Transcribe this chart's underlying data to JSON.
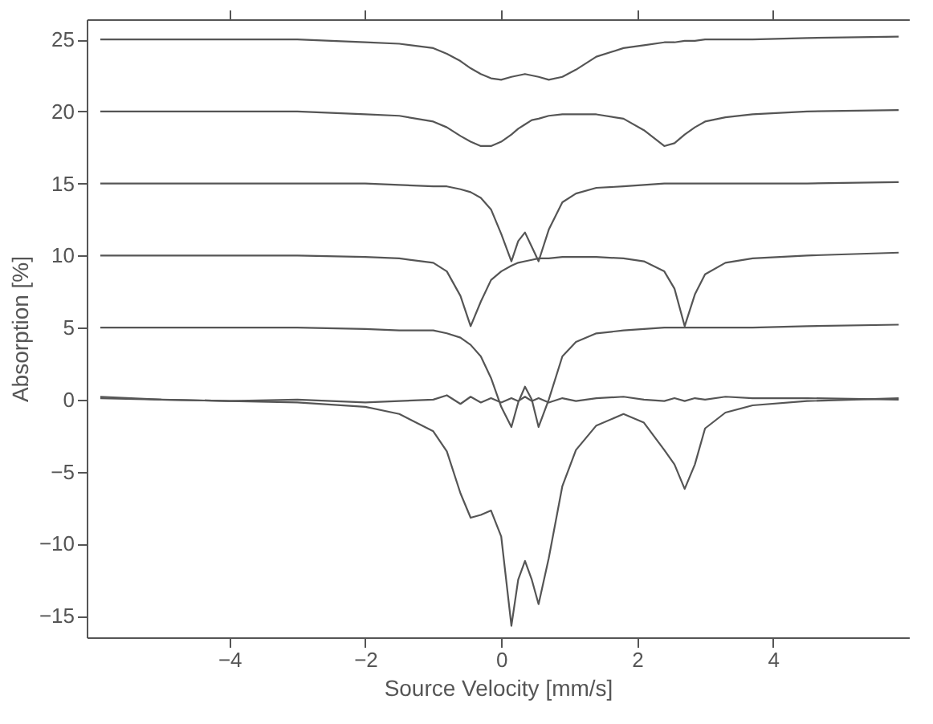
{
  "chart_data": {
    "type": "line",
    "xlabel": "Source Velocity [mm/s]",
    "ylabel": "Absorption [%]",
    "x": [
      -5.9,
      -5,
      -4,
      -3,
      -2,
      -1.5,
      -1,
      -0.8,
      -0.6,
      -0.45,
      -0.3,
      -0.15,
      0,
      0.15,
      0.25,
      0.35,
      0.45,
      0.55,
      0.7,
      0.9,
      1.1,
      1.4,
      1.8,
      2.1,
      2.4,
      2.55,
      2.7,
      2.85,
      3.0,
      3.3,
      3.7,
      4.5,
      5.85
    ],
    "series": [
      {
        "color": "#555555",
        "values": [
          25.0,
          25.0,
          25.0,
          25.0,
          24.8,
          24.7,
          24.4,
          24.0,
          23.5,
          23.0,
          22.6,
          22.3,
          22.2,
          22.4,
          22.5,
          22.6,
          22.5,
          22.4,
          22.2,
          22.4,
          22.9,
          23.8,
          24.4,
          24.6,
          24.8,
          24.8,
          24.9,
          24.9,
          25.0,
          25.0,
          25.0,
          25.1,
          25.2
        ]
      },
      {
        "color": "#555555",
        "values": [
          20.0,
          20.0,
          20.0,
          20.0,
          19.8,
          19.7,
          19.3,
          18.9,
          18.3,
          17.9,
          17.6,
          17.6,
          17.9,
          18.4,
          18.8,
          19.1,
          19.4,
          19.5,
          19.7,
          19.8,
          19.8,
          19.8,
          19.5,
          18.7,
          17.6,
          17.8,
          18.4,
          18.9,
          19.3,
          19.6,
          19.8,
          20.0,
          20.1
        ]
      },
      {
        "color": "#555555",
        "values": [
          15.0,
          15.0,
          15.0,
          15.0,
          15.0,
          14.9,
          14.8,
          14.8,
          14.6,
          14.4,
          14.0,
          13.2,
          11.5,
          9.6,
          11.0,
          11.6,
          10.6,
          9.6,
          11.8,
          13.7,
          14.3,
          14.7,
          14.8,
          14.9,
          15.0,
          15.0,
          15.0,
          15.0,
          15.0,
          15.0,
          15.0,
          15.0,
          15.1
        ]
      },
      {
        "color": "#555555",
        "values": [
          10.0,
          10.0,
          10.0,
          10.0,
          9.9,
          9.8,
          9.5,
          8.9,
          7.2,
          5.1,
          6.8,
          8.3,
          8.9,
          9.3,
          9.5,
          9.6,
          9.7,
          9.8,
          9.8,
          9.9,
          9.9,
          9.9,
          9.8,
          9.6,
          8.9,
          7.7,
          5.1,
          7.3,
          8.7,
          9.5,
          9.8,
          10.0,
          10.2
        ]
      },
      {
        "color": "#555555",
        "values": [
          5.0,
          5.0,
          5.0,
          5.0,
          4.9,
          4.8,
          4.8,
          4.6,
          4.3,
          3.8,
          3.0,
          1.5,
          -0.5,
          -1.9,
          -0.2,
          0.9,
          0.0,
          -1.9,
          0.0,
          3.0,
          4.0,
          4.6,
          4.8,
          4.9,
          5.0,
          5.0,
          5.0,
          5.0,
          5.0,
          5.0,
          5.0,
          5.1,
          5.2
        ]
      },
      {
        "color": "#555555",
        "values": [
          0.1,
          0.0,
          -0.1,
          0.0,
          -0.2,
          -0.1,
          0.0,
          0.3,
          -0.3,
          0.2,
          -0.2,
          0.1,
          -0.2,
          0.1,
          -0.1,
          0.2,
          -0.1,
          0.1,
          -0.2,
          0.1,
          -0.1,
          0.1,
          0.2,
          0.0,
          -0.1,
          0.1,
          -0.1,
          0.1,
          0.0,
          0.2,
          0.1,
          0.1,
          0.0
        ]
      },
      {
        "color": "#555555",
        "values": [
          0.2,
          0.0,
          -0.1,
          -0.2,
          -0.5,
          -1.0,
          -2.2,
          -3.6,
          -6.5,
          -8.2,
          -8.0,
          -7.7,
          -9.5,
          -15.7,
          -12.5,
          -11.2,
          -12.5,
          -14.2,
          -11.0,
          -6.0,
          -3.5,
          -1.8,
          -1.0,
          -1.6,
          -3.5,
          -4.5,
          -6.2,
          -4.5,
          -2.0,
          -0.9,
          -0.4,
          -0.1,
          0.1
        ]
      }
    ],
    "xlim": [
      -6.1,
      6.0
    ],
    "ylim": [
      -16.5,
      26.4
    ],
    "xticks": [
      -4,
      -2,
      0,
      2,
      4
    ],
    "yticks": [
      -15,
      -10,
      -5,
      0,
      5,
      10,
      15,
      20,
      25
    ],
    "grid": false,
    "legend": false,
    "marker": "none",
    "line_style": "solid"
  }
}
